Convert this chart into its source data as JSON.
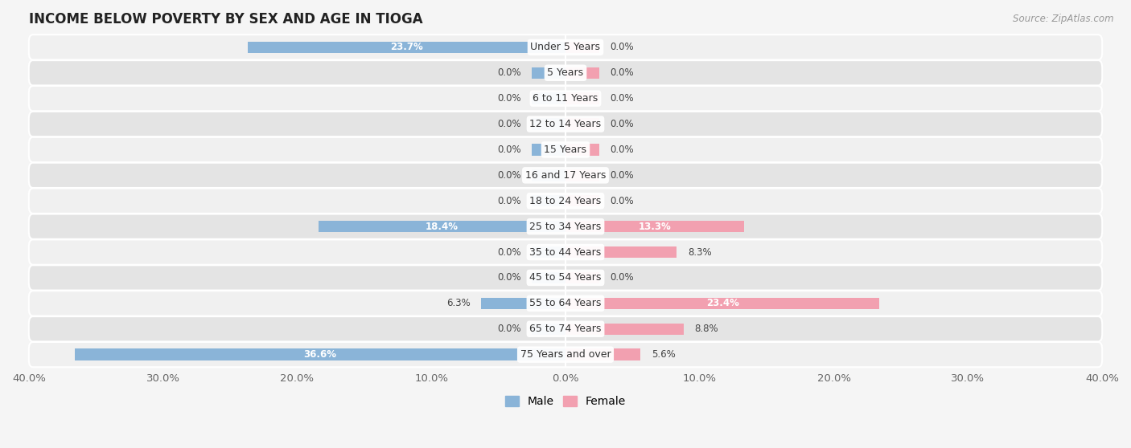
{
  "title": "INCOME BELOW POVERTY BY SEX AND AGE IN TIOGA",
  "source": "Source: ZipAtlas.com",
  "categories": [
    "Under 5 Years",
    "5 Years",
    "6 to 11 Years",
    "12 to 14 Years",
    "15 Years",
    "16 and 17 Years",
    "18 to 24 Years",
    "25 to 34 Years",
    "35 to 44 Years",
    "45 to 54 Years",
    "55 to 64 Years",
    "65 to 74 Years",
    "75 Years and over"
  ],
  "male": [
    23.7,
    0.0,
    0.0,
    0.0,
    0.0,
    0.0,
    0.0,
    18.4,
    0.0,
    0.0,
    6.3,
    0.0,
    36.6
  ],
  "female": [
    0.0,
    0.0,
    0.0,
    0.0,
    0.0,
    0.0,
    0.0,
    13.3,
    8.3,
    0.0,
    23.4,
    8.8,
    5.6
  ],
  "male_color": "#8ab4d8",
  "female_color": "#f2a0b0",
  "male_label": "Male",
  "female_label": "Female",
  "xlim": 40.0,
  "bar_height": 0.6,
  "row_colors": [
    "#f0f0f0",
    "#e4e4e4"
  ],
  "title_fontsize": 12,
  "label_fontsize": 9,
  "axis_label_fontsize": 9.5,
  "value_fontsize": 8.5,
  "min_bar_width": 2.5,
  "fig_bg": "#f5f5f5"
}
